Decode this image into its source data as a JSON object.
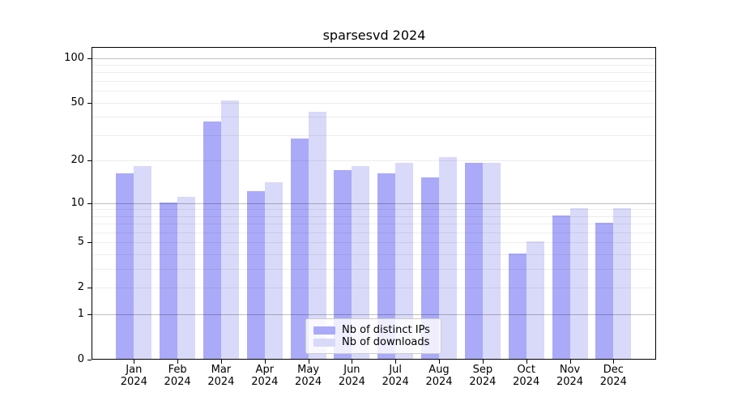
{
  "chart_data": {
    "type": "bar",
    "title": "sparsesvd 2024",
    "categories": [
      "Jan 2024",
      "Feb 2024",
      "Mar 2024",
      "Apr 2024",
      "May 2024",
      "Jun 2024",
      "Jul 2024",
      "Aug 2024",
      "Sep 2024",
      "Oct 2024",
      "Nov 2024",
      "Dec 2024"
    ],
    "x_tick_line1": [
      "Jan",
      "Feb",
      "Mar",
      "Apr",
      "May",
      "Jun",
      "Jul",
      "Aug",
      "Sep",
      "Oct",
      "Nov",
      "Dec"
    ],
    "x_tick_line2": "2024",
    "series": [
      {
        "name": "Nb of distinct IPs",
        "color": "#aaaaf9",
        "values": [
          16,
          10,
          37,
          12,
          28,
          17,
          16,
          15,
          19,
          4,
          8,
          7
        ]
      },
      {
        "name": "Nb of downloads",
        "color": "#d9d9fa",
        "values": [
          18,
          11,
          51,
          14,
          43,
          18,
          19,
          21,
          19,
          5,
          9,
          9
        ]
      }
    ],
    "xlabel": "",
    "ylabel": "",
    "y_scale": "log10(value+1)",
    "y_ticks": [
      0,
      1,
      2,
      5,
      10,
      20,
      50,
      100
    ],
    "y_tick_labels": [
      "0",
      "1",
      "2",
      "5",
      "10",
      "20",
      "50",
      "100"
    ],
    "y_major_gridlines": [
      1,
      10,
      100
    ],
    "y_minor_gridlines": [
      2,
      3,
      4,
      5,
      6,
      7,
      8,
      9,
      20,
      30,
      40,
      50,
      60,
      70,
      80,
      90
    ],
    "ylim": [
      0,
      117
    ],
    "grid": true,
    "legend_position": "lower center",
    "colors": {
      "spine": "#000000",
      "tick_text": "#000000",
      "major_grid": "rgba(0,0,0,0.25)",
      "minor_grid": "rgba(0,0,0,0.07)"
    }
  }
}
